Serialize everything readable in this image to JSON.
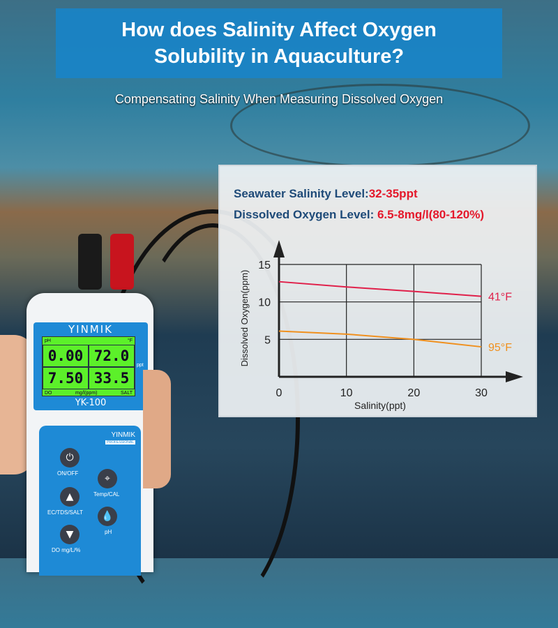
{
  "title": "How does Salinity Affect Oxygen Solubility in Aquaculture?",
  "subtitle": "Compensating Salinity When Measuring Dissolved Oxygen",
  "info": {
    "salinity_label": "Seawater Salinity Level:",
    "salinity_value": "32-35ppt",
    "do_label": "Dissolved Oxygen Level: ",
    "do_value": "6.5-8mg/l(80-120%)"
  },
  "chart_data": {
    "type": "line",
    "title": "",
    "xlabel": "Salinity(ppt)",
    "ylabel": "Dissolved Oxygen(ppm)",
    "xlim": [
      0,
      30
    ],
    "ylim": [
      0,
      15
    ],
    "xticks": [
      "0",
      "10",
      "20",
      "30"
    ],
    "yticks": [
      "5",
      "10",
      "15"
    ],
    "grid": true,
    "x": [
      0,
      10,
      20,
      30
    ],
    "series": [
      {
        "name": "41°F",
        "values": [
          12.7,
          12.0,
          11.4,
          10.75
        ],
        "color": "#e0204a"
      },
      {
        "name": "95°F",
        "values": [
          6.1,
          5.7,
          5.0,
          4.0
        ],
        "color": "#f0901e"
      }
    ]
  },
  "device": {
    "brand": "YINMIK",
    "model": "YK-100",
    "brand2": "YINMIK",
    "brand2_tag": "PROFESSIONAL",
    "lcd": [
      "0.00",
      "72.0",
      "7.50",
      "33.5"
    ],
    "lcd_labels": [
      "pH",
      "°F",
      "DO",
      "mg/l(ppm)",
      "SALT",
      "ppt"
    ],
    "buttons": [
      {
        "label": "ON/OFF",
        "icon": "power-icon"
      },
      {
        "label": "Temp/CAL",
        "icon": "crosshair-icon"
      },
      {
        "label": "EC/TDS/SALT",
        "icon": "triangle-up-icon"
      },
      {
        "label": "pH",
        "icon": "droplet-icon"
      },
      {
        "label": "DO mg/L/%",
        "icon": "triangle-down-icon"
      }
    ]
  }
}
